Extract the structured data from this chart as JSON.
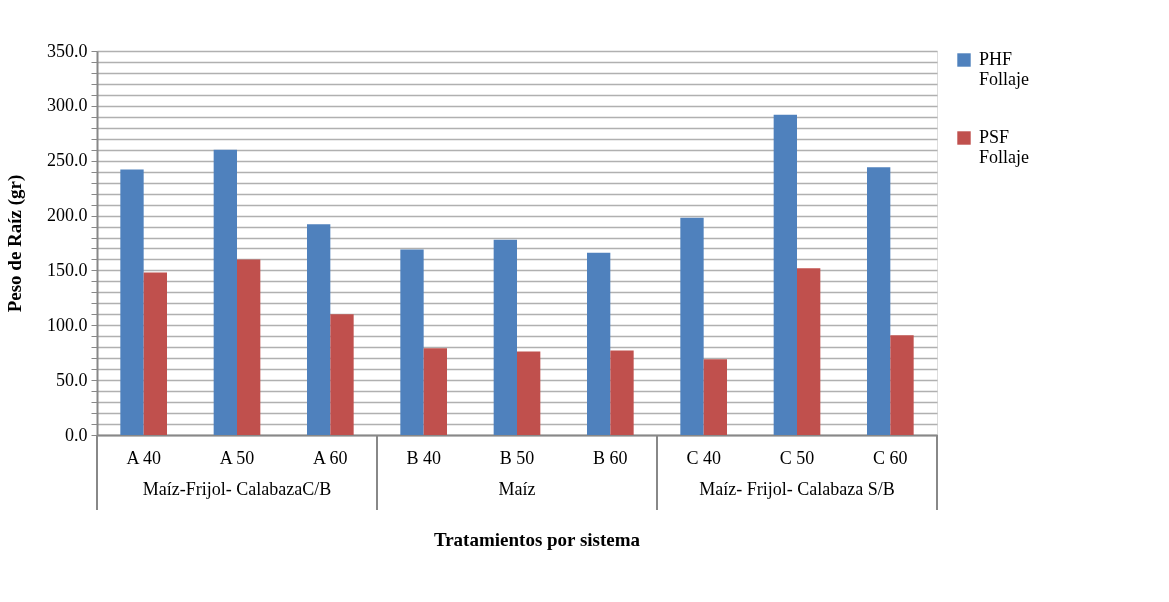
{
  "chart_data": {
    "type": "bar",
    "xlabel": "Tratamientos por sistema",
    "ylabel": "Peso de Raíz (gr)",
    "categories": [
      "A 40",
      "A 50",
      "A 60",
      "B 40",
      "B 50",
      "B 60",
      "C 40",
      "C 50",
      "C 60"
    ],
    "series": [
      {
        "name": "PHF Follaje",
        "color": "#4f81bd",
        "values": [
          242,
          260,
          192,
          169,
          178,
          166,
          198,
          292,
          244
        ]
      },
      {
        "name": "PSF Follaje",
        "color": "#c0504d",
        "values": [
          148,
          160,
          110,
          79,
          76,
          77,
          69,
          152,
          91
        ]
      }
    ],
    "annotations": [
      "Maíz-Frijol- CalabazaC/B",
      "Maíz",
      "Maíz- Frijol- Calabaza S/B"
    ],
    "ylim": [
      0,
      350
    ],
    "yticks": [
      {
        "value": 0,
        "label": "0.0"
      },
      {
        "value": 10,
        "label": null
      },
      {
        "value": 20,
        "label": null
      },
      {
        "value": 30,
        "label": null
      },
      {
        "value": 40,
        "label": null
      },
      {
        "value": 50,
        "label": "50.0"
      },
      {
        "value": 60,
        "label": null
      },
      {
        "value": 70,
        "label": null
      },
      {
        "value": 80,
        "label": null
      },
      {
        "value": 90,
        "label": null
      },
      {
        "value": 100,
        "label": "100.0"
      },
      {
        "value": 110,
        "label": null
      },
      {
        "value": 120,
        "label": null
      },
      {
        "value": 130,
        "label": null
      },
      {
        "value": 140,
        "label": null
      },
      {
        "value": 150,
        "label": "150.0"
      },
      {
        "value": 160,
        "label": null
      },
      {
        "value": 170,
        "label": null
      },
      {
        "value": 180,
        "label": null
      },
      {
        "value": 190,
        "label": null
      },
      {
        "value": 200,
        "label": "200.0"
      },
      {
        "value": 210,
        "label": null
      },
      {
        "value": 220,
        "label": null
      },
      {
        "value": 230,
        "label": null
      },
      {
        "value": 240,
        "label": null
      },
      {
        "value": 250,
        "label": "250.0"
      },
      {
        "value": 260,
        "label": null
      },
      {
        "value": 270,
        "label": null
      },
      {
        "value": 280,
        "label": null
      },
      {
        "value": 290,
        "label": null
      },
      {
        "value": 300,
        "label": "300.0"
      },
      {
        "value": 310,
        "label": null
      },
      {
        "value": 320,
        "label": null
      },
      {
        "value": 330,
        "label": null
      },
      {
        "value": 340,
        "label": null
      },
      {
        "value": 350,
        "label": "350.0"
      }
    ],
    "grid": true,
    "legend": "right"
  }
}
